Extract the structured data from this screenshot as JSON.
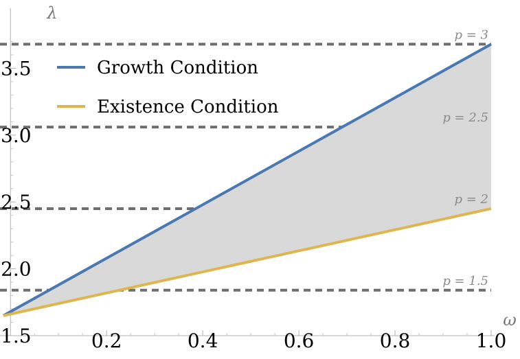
{
  "chart_data": {
    "type": "line",
    "title": "",
    "xlabel": "ω",
    "ylabel": "λ",
    "xlim": [
      -0.0146,
      1.0
    ],
    "ylim": [
      1.5,
      3.8
    ],
    "x_ticks": [
      "0.2",
      "0.4",
      "0.6",
      "0.8",
      "1.0"
    ],
    "y_ticks": [
      "1.5",
      "2.0",
      "2.5",
      "3.0",
      "3.5"
    ],
    "series": [
      {
        "name": "Growth Condition",
        "color": "#4a78b0",
        "x": [
          -0.0146,
          1.0
        ],
        "y": [
          1.65,
          3.68
        ]
      },
      {
        "name": "Existence Condition",
        "color": "#dfb54f",
        "x": [
          -0.0146,
          1.0
        ],
        "y": [
          1.65,
          2.45
        ]
      }
    ],
    "shaded_region": {
      "between": [
        "Existence Condition",
        "Growth Condition"
      ],
      "color": "#d9d9d9"
    },
    "reference_lines": [
      {
        "y": 3.68,
        "label": "p = 3"
      },
      {
        "y": 3.06,
        "label": "p = 2.5"
      },
      {
        "y": 2.45,
        "label": "p = 2"
      },
      {
        "y": 1.84,
        "label": "p = 1.5"
      }
    ],
    "legend_position": "top-left"
  }
}
